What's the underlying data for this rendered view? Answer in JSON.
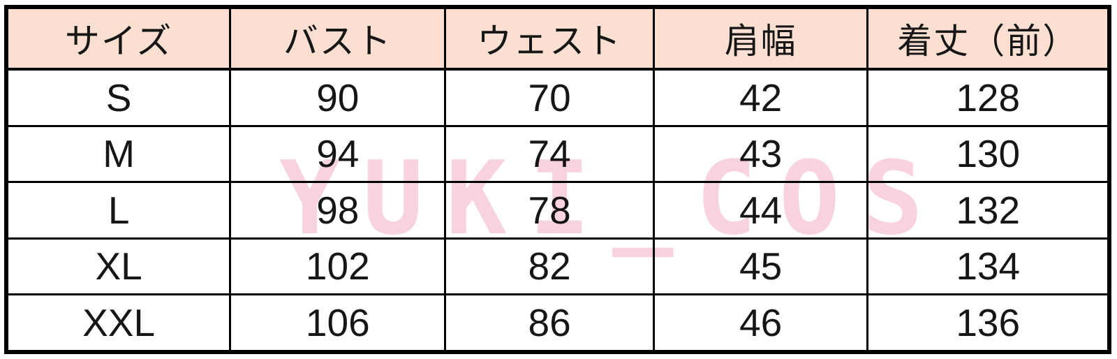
{
  "chart_data": {
    "type": "table",
    "title": "",
    "columns": [
      "サイズ",
      "バスト",
      "ウェスト",
      "肩幅",
      "着丈（前）"
    ],
    "rows": [
      [
        "S",
        90,
        70,
        42,
        128
      ],
      [
        "M",
        94,
        74,
        43,
        130
      ],
      [
        "L",
        98,
        78,
        44,
        132
      ],
      [
        "XL",
        102,
        82,
        45,
        134
      ],
      [
        "XXL",
        106,
        86,
        46,
        136
      ]
    ]
  },
  "watermark": {
    "text": "YUKI_COS"
  },
  "colors": {
    "header_bg": "#fbe0d1",
    "watermark_pink": "#f9d2e2",
    "border": "#000000",
    "text": "#161616",
    "page_bg": "#ffffff"
  }
}
